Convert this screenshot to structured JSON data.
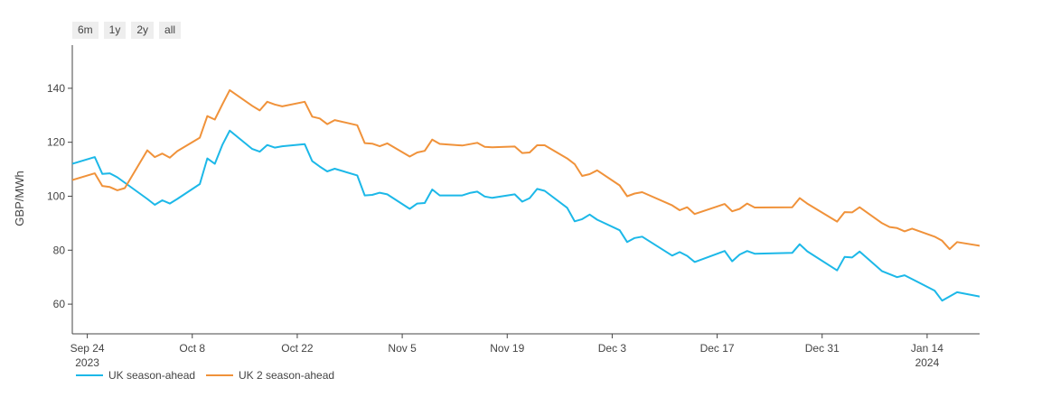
{
  "range_buttons": [
    {
      "label": "6m"
    },
    {
      "label": "1y"
    },
    {
      "label": "2y"
    },
    {
      "label": "all"
    }
  ],
  "chart_data": {
    "type": "line",
    "title": "",
    "xlabel": "",
    "ylabel": "GBP/MWh",
    "ylim": [
      49,
      156
    ],
    "y_ticks": [
      60,
      80,
      100,
      120,
      140
    ],
    "x_range": [
      "2023-09-22",
      "2024-01-21"
    ],
    "x_ticks": [
      {
        "date": "2023-09-24",
        "label": "Sep 24",
        "sublabel": "2023"
      },
      {
        "date": "2023-10-08",
        "label": "Oct 8",
        "sublabel": ""
      },
      {
        "date": "2023-10-22",
        "label": "Oct 22",
        "sublabel": ""
      },
      {
        "date": "2023-11-05",
        "label": "Nov 5",
        "sublabel": ""
      },
      {
        "date": "2023-11-19",
        "label": "Nov 19",
        "sublabel": ""
      },
      {
        "date": "2023-12-03",
        "label": "Dec 3",
        "sublabel": ""
      },
      {
        "date": "2023-12-17",
        "label": "Dec 17",
        "sublabel": ""
      },
      {
        "date": "2023-12-31",
        "label": "Dec 31",
        "sublabel": ""
      },
      {
        "date": "2024-01-14",
        "label": "Jan 14",
        "sublabel": "2024"
      }
    ],
    "grid": false,
    "legend_position": "bottom-left",
    "series": [
      {
        "name": "UK season-ahead",
        "color": "#1cb8e8",
        "points": [
          [
            "2023-09-22",
            112.0
          ],
          [
            "2023-09-25",
            114.5
          ],
          [
            "2023-09-26",
            108.3
          ],
          [
            "2023-09-27",
            108.5
          ],
          [
            "2023-09-28",
            107.0
          ],
          [
            "2023-09-29",
            105.0
          ],
          [
            "2023-10-02",
            99.0
          ],
          [
            "2023-10-03",
            96.8
          ],
          [
            "2023-10-04",
            98.5
          ],
          [
            "2023-10-05",
            97.3
          ],
          [
            "2023-10-06",
            99.0
          ],
          [
            "2023-10-09",
            104.5
          ],
          [
            "2023-10-10",
            114.0
          ],
          [
            "2023-10-11",
            112.0
          ],
          [
            "2023-10-12",
            119.0
          ],
          [
            "2023-10-13",
            124.3
          ],
          [
            "2023-10-16",
            117.5
          ],
          [
            "2023-10-17",
            116.5
          ],
          [
            "2023-10-18",
            119.0
          ],
          [
            "2023-10-19",
            118.0
          ],
          [
            "2023-10-20",
            118.5
          ],
          [
            "2023-10-23",
            119.3
          ],
          [
            "2023-10-24",
            113.0
          ],
          [
            "2023-10-25",
            111.0
          ],
          [
            "2023-10-26",
            109.2
          ],
          [
            "2023-10-27",
            110.2
          ],
          [
            "2023-10-30",
            107.7
          ],
          [
            "2023-10-31",
            100.3
          ],
          [
            "2023-11-01",
            100.5
          ],
          [
            "2023-11-02",
            101.3
          ],
          [
            "2023-11-03",
            100.7
          ],
          [
            "2023-11-06",
            95.3
          ],
          [
            "2023-11-07",
            97.3
          ],
          [
            "2023-11-08",
            97.5
          ],
          [
            "2023-11-09",
            102.5
          ],
          [
            "2023-11-10",
            100.3
          ],
          [
            "2023-11-13",
            100.3
          ],
          [
            "2023-11-14",
            101.2
          ],
          [
            "2023-11-15",
            101.7
          ],
          [
            "2023-11-16",
            99.9
          ],
          [
            "2023-11-17",
            99.4
          ],
          [
            "2023-11-20",
            100.7
          ],
          [
            "2023-11-21",
            98.0
          ],
          [
            "2023-11-22",
            99.3
          ],
          [
            "2023-11-23",
            102.7
          ],
          [
            "2023-11-24",
            102.0
          ],
          [
            "2023-11-27",
            95.7
          ],
          [
            "2023-11-28",
            90.7
          ],
          [
            "2023-11-29",
            91.5
          ],
          [
            "2023-11-30",
            93.2
          ],
          [
            "2023-12-01",
            91.3
          ],
          [
            "2023-12-04",
            87.4
          ],
          [
            "2023-12-05",
            83.0
          ],
          [
            "2023-12-06",
            84.5
          ],
          [
            "2023-12-07",
            85.0
          ],
          [
            "2023-12-11",
            78.0
          ],
          [
            "2023-12-12",
            79.3
          ],
          [
            "2023-12-13",
            77.9
          ],
          [
            "2023-12-14",
            75.6
          ],
          [
            "2023-12-18",
            79.7
          ],
          [
            "2023-12-19",
            75.9
          ],
          [
            "2023-12-20",
            78.4
          ],
          [
            "2023-12-21",
            79.7
          ],
          [
            "2023-12-22",
            78.7
          ],
          [
            "2023-12-27",
            79.0
          ],
          [
            "2023-12-28",
            82.2
          ],
          [
            "2023-12-29",
            79.6
          ],
          [
            "2024-01-02",
            72.5
          ],
          [
            "2024-01-03",
            77.5
          ],
          [
            "2024-01-04",
            77.3
          ],
          [
            "2024-01-05",
            79.5
          ],
          [
            "2024-01-08",
            72.2
          ],
          [
            "2024-01-10",
            70.0
          ],
          [
            "2024-01-11",
            70.7
          ],
          [
            "2024-01-15",
            65.0
          ],
          [
            "2024-01-16",
            61.3
          ],
          [
            "2024-01-18",
            64.4
          ],
          [
            "2024-01-21",
            62.8
          ],
          [
            "2024-01-22",
            62.8
          ]
        ]
      },
      {
        "name": "UK 2 season-ahead",
        "color": "#f0923a",
        "points": [
          [
            "2023-09-22",
            106.0
          ],
          [
            "2023-09-25",
            108.5
          ],
          [
            "2023-09-26",
            103.8
          ],
          [
            "2023-09-27",
            103.4
          ],
          [
            "2023-09-28",
            102.2
          ],
          [
            "2023-09-29",
            103.0
          ],
          [
            "2023-10-02",
            117.0
          ],
          [
            "2023-10-03",
            114.5
          ],
          [
            "2023-10-04",
            115.8
          ],
          [
            "2023-10-05",
            114.3
          ],
          [
            "2023-10-06",
            116.7
          ],
          [
            "2023-10-09",
            121.7
          ],
          [
            "2023-10-10",
            129.7
          ],
          [
            "2023-10-11",
            128.4
          ],
          [
            "2023-10-12",
            134.0
          ],
          [
            "2023-10-13",
            139.3
          ],
          [
            "2023-10-16",
            133.5
          ],
          [
            "2023-10-17",
            131.8
          ],
          [
            "2023-10-18",
            135.0
          ],
          [
            "2023-10-19",
            134.0
          ],
          [
            "2023-10-20",
            133.3
          ],
          [
            "2023-10-23",
            135.0
          ],
          [
            "2023-10-24",
            129.5
          ],
          [
            "2023-10-25",
            128.8
          ],
          [
            "2023-10-26",
            126.7
          ],
          [
            "2023-10-27",
            128.2
          ],
          [
            "2023-10-30",
            126.3
          ],
          [
            "2023-10-31",
            119.7
          ],
          [
            "2023-11-01",
            119.5
          ],
          [
            "2023-11-02",
            118.5
          ],
          [
            "2023-11-03",
            119.6
          ],
          [
            "2023-11-06",
            114.7
          ],
          [
            "2023-11-07",
            116.2
          ],
          [
            "2023-11-08",
            116.8
          ],
          [
            "2023-11-09",
            121.0
          ],
          [
            "2023-11-10",
            119.4
          ],
          [
            "2023-11-13",
            118.8
          ],
          [
            "2023-11-14",
            119.3
          ],
          [
            "2023-11-15",
            119.8
          ],
          [
            "2023-11-16",
            118.3
          ],
          [
            "2023-11-17",
            118.1
          ],
          [
            "2023-11-20",
            118.4
          ],
          [
            "2023-11-21",
            116.0
          ],
          [
            "2023-11-22",
            116.2
          ],
          [
            "2023-11-23",
            118.9
          ],
          [
            "2023-11-24",
            118.9
          ],
          [
            "2023-11-27",
            114.0
          ],
          [
            "2023-11-28",
            111.9
          ],
          [
            "2023-11-29",
            107.5
          ],
          [
            "2023-11-30",
            108.2
          ],
          [
            "2023-12-01",
            109.6
          ],
          [
            "2023-12-04",
            104.0
          ],
          [
            "2023-12-05",
            100.0
          ],
          [
            "2023-12-06",
            101.0
          ],
          [
            "2023-12-07",
            101.5
          ],
          [
            "2023-12-11",
            96.6
          ],
          [
            "2023-12-12",
            94.8
          ],
          [
            "2023-12-13",
            95.9
          ],
          [
            "2023-12-14",
            93.4
          ],
          [
            "2023-12-18",
            97.1
          ],
          [
            "2023-12-19",
            94.4
          ],
          [
            "2023-12-20",
            95.3
          ],
          [
            "2023-12-21",
            97.3
          ],
          [
            "2023-12-22",
            95.8
          ],
          [
            "2023-12-27",
            95.9
          ],
          [
            "2023-12-28",
            99.3
          ],
          [
            "2023-12-29",
            97.3
          ],
          [
            "2024-01-02",
            90.6
          ],
          [
            "2024-01-03",
            94.1
          ],
          [
            "2024-01-04",
            94.0
          ],
          [
            "2024-01-05",
            95.9
          ],
          [
            "2024-01-08",
            90.0
          ],
          [
            "2024-01-09",
            88.6
          ],
          [
            "2024-01-10",
            88.2
          ],
          [
            "2024-01-11",
            87.0
          ],
          [
            "2024-01-12",
            88.0
          ],
          [
            "2024-01-15",
            85.0
          ],
          [
            "2024-01-16",
            83.5
          ],
          [
            "2024-01-17",
            80.4
          ],
          [
            "2024-01-18",
            83.0
          ],
          [
            "2024-01-22",
            81.2
          ]
        ]
      }
    ]
  }
}
